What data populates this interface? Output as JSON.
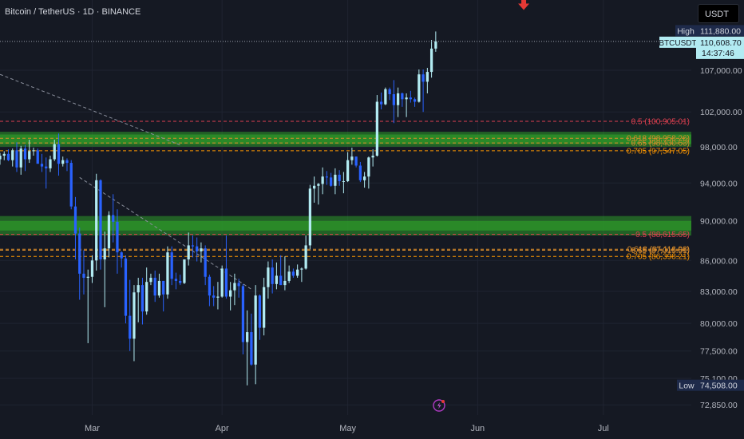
{
  "header": {
    "title": "Bitcoin / TetherUS · 1D · BINANCE"
  },
  "currency_button": {
    "label": "USDT"
  },
  "colors": {
    "background": "#151923",
    "up_candle": "#b2ebf2",
    "down_candle": "#2962ff",
    "zone_green": "#2e9b2a",
    "fib_05": "#e04050",
    "fib_0618": "#d98c2b",
    "fib_0705": "#ff9800",
    "high_marker": "#e53935",
    "price_tag": "#b2ebf2"
  },
  "chart_data": {
    "type": "candlestick",
    "symbol": "BTCUSDT",
    "timeframe": "1D",
    "y_scale": "log",
    "ylim": [
      72000,
      116000
    ],
    "xlim": [
      "2025-02-07",
      "2025-07-22"
    ],
    "x_ticks": [
      {
        "date": "2025-03-01",
        "label": "Mar"
      },
      {
        "date": "2025-04-01",
        "label": "Apr"
      },
      {
        "date": "2025-05-01",
        "label": "May"
      },
      {
        "date": "2025-06-01",
        "label": "Jun"
      },
      {
        "date": "2025-07-01",
        "label": "Jul"
      }
    ],
    "y_ticks": [
      107000,
      102000,
      98000,
      94000,
      90000,
      86000,
      83000,
      80000,
      77500,
      75100,
      72850
    ],
    "y_tick_labels": [
      "107,000.00",
      "102,000.00",
      "98,000.00",
      "94,000.00",
      "90,000.00",
      "86,000.00",
      "83,000.00",
      "80,000.00",
      "77,500.00",
      "75,100.00",
      "72,850.00"
    ],
    "price_labels": {
      "high": {
        "label": "High",
        "value": "111,880.00",
        "price": 111880
      },
      "current": {
        "symbol": "BTCUSDT",
        "value": "110,608.70",
        "price": 110608.7,
        "countdown": "14:37:46"
      },
      "low": {
        "label": "Low",
        "value": "74,508.00",
        "price": 74508
      }
    },
    "zones": [
      {
        "from": 98000,
        "to": 99700
      },
      {
        "from": 88500,
        "to": 90500
      }
    ],
    "fib_levels": [
      {
        "label": "0.5 (100,905.01)",
        "price": 100905.01,
        "color": "#e04050"
      },
      {
        "label": "0.618 (98,958.26)",
        "price": 98958.26,
        "color": "#d98c2b"
      },
      {
        "label": "0.65 (98,430.63)",
        "price": 98430.63,
        "color": "#d98c2b"
      },
      {
        "label": "0.705 (97,547.05)",
        "price": 97547.05,
        "color": "#ff9800"
      },
      {
        "label": "0.5 (88,615.65)",
        "price": 88615.65,
        "color": "#e04050"
      },
      {
        "label": "0.618 (87,116.98)",
        "price": 87116.98,
        "color": "#d98c2b"
      },
      {
        "label": "0.65 (87,015.51)",
        "price": 87015.51,
        "color": "#d98c2b"
      },
      {
        "label": "0.705 (86,398.21)",
        "price": 86398.21,
        "color": "#ff9800"
      }
    ],
    "trendlines": [
      {
        "from": {
          "date": "2025-02-07",
          "price": 106500
        },
        "to": {
          "date": "2025-03-22",
          "price": 98200
        }
      },
      {
        "from": {
          "date": "2025-02-26",
          "price": 94600
        },
        "to": {
          "date": "2025-04-08",
          "price": 83200
        }
      }
    ],
    "high_marker": {
      "date": "2025-06-12",
      "price": 115000
    },
    "candles": [
      {
        "date": "2025-02-07",
        "o": 96600,
        "h": 97300,
        "l": 96000,
        "c": 97000
      },
      {
        "date": "2025-02-08",
        "o": 97000,
        "h": 97500,
        "l": 96500,
        "c": 97200
      },
      {
        "date": "2025-02-09",
        "o": 97200,
        "h": 97700,
        "l": 96400,
        "c": 96500
      },
      {
        "date": "2025-02-10",
        "o": 96500,
        "h": 97800,
        "l": 95800,
        "c": 97600
      },
      {
        "date": "2025-02-11",
        "o": 97600,
        "h": 98500,
        "l": 95200,
        "c": 95700
      },
      {
        "date": "2025-02-12",
        "o": 95700,
        "h": 98100,
        "l": 94900,
        "c": 97800
      },
      {
        "date": "2025-02-13",
        "o": 97800,
        "h": 98200,
        "l": 95300,
        "c": 96600
      },
      {
        "date": "2025-02-14",
        "o": 96600,
        "h": 98800,
        "l": 96200,
        "c": 97500
      },
      {
        "date": "2025-02-15",
        "o": 97500,
        "h": 97900,
        "l": 97000,
        "c": 97600
      },
      {
        "date": "2025-02-16",
        "o": 97600,
        "h": 97800,
        "l": 96300,
        "c": 96100
      },
      {
        "date": "2025-02-17",
        "o": 96100,
        "h": 97200,
        "l": 95200,
        "c": 95800
      },
      {
        "date": "2025-02-18",
        "o": 95800,
        "h": 96800,
        "l": 93400,
        "c": 95600
      },
      {
        "date": "2025-02-19",
        "o": 95600,
        "h": 97000,
        "l": 95200,
        "c": 96600
      },
      {
        "date": "2025-02-20",
        "o": 96600,
        "h": 98800,
        "l": 96400,
        "c": 98300
      },
      {
        "date": "2025-02-21",
        "o": 98300,
        "h": 99500,
        "l": 94800,
        "c": 96100
      },
      {
        "date": "2025-02-22",
        "o": 96100,
        "h": 96900,
        "l": 95800,
        "c": 96500
      },
      {
        "date": "2025-02-23",
        "o": 96500,
        "h": 96700,
        "l": 95300,
        "c": 96200
      },
      {
        "date": "2025-02-24",
        "o": 96200,
        "h": 96500,
        "l": 91200,
        "c": 91500
      },
      {
        "date": "2025-02-25",
        "o": 91500,
        "h": 92500,
        "l": 86100,
        "c": 88700
      },
      {
        "date": "2025-02-26",
        "o": 88700,
        "h": 89300,
        "l": 82200,
        "c": 84700
      },
      {
        "date": "2025-02-27",
        "o": 84700,
        "h": 87000,
        "l": 82700,
        "c": 84300
      },
      {
        "date": "2025-02-28",
        "o": 84300,
        "h": 85100,
        "l": 78200,
        "c": 84400
      },
      {
        "date": "2025-03-01",
        "o": 84400,
        "h": 86500,
        "l": 83800,
        "c": 86000
      },
      {
        "date": "2025-03-02",
        "o": 86000,
        "h": 95000,
        "l": 85000,
        "c": 94300
      },
      {
        "date": "2025-03-03",
        "o": 94300,
        "h": 94400,
        "l": 85100,
        "c": 86100
      },
      {
        "date": "2025-03-04",
        "o": 86100,
        "h": 88900,
        "l": 81500,
        "c": 87200
      },
      {
        "date": "2025-03-05",
        "o": 87200,
        "h": 91000,
        "l": 86300,
        "c": 90600
      },
      {
        "date": "2025-03-06",
        "o": 90600,
        "h": 92800,
        "l": 87800,
        "c": 89900
      },
      {
        "date": "2025-03-07",
        "o": 89900,
        "h": 91200,
        "l": 84700,
        "c": 86800
      },
      {
        "date": "2025-03-08",
        "o": 86800,
        "h": 86900,
        "l": 85300,
        "c": 86200
      },
      {
        "date": "2025-03-09",
        "o": 86200,
        "h": 86500,
        "l": 80000,
        "c": 80700
      },
      {
        "date": "2025-03-10",
        "o": 80700,
        "h": 84100,
        "l": 77500,
        "c": 78600
      },
      {
        "date": "2025-03-11",
        "o": 78600,
        "h": 83600,
        "l": 76600,
        "c": 82900
      },
      {
        "date": "2025-03-12",
        "o": 82900,
        "h": 84300,
        "l": 80100,
        "c": 83600
      },
      {
        "date": "2025-03-13",
        "o": 83600,
        "h": 84300,
        "l": 79900,
        "c": 81100
      },
      {
        "date": "2025-03-14",
        "o": 81100,
        "h": 85300,
        "l": 80800,
        "c": 83900
      },
      {
        "date": "2025-03-15",
        "o": 83900,
        "h": 84700,
        "l": 83600,
        "c": 84300
      },
      {
        "date": "2025-03-16",
        "o": 84300,
        "h": 85000,
        "l": 82000,
        "c": 82600
      },
      {
        "date": "2025-03-17",
        "o": 82600,
        "h": 84700,
        "l": 82400,
        "c": 84000
      },
      {
        "date": "2025-03-18",
        "o": 84000,
        "h": 84000,
        "l": 81100,
        "c": 82700
      },
      {
        "date": "2025-03-19",
        "o": 82700,
        "h": 87400,
        "l": 82300,
        "c": 86800
      },
      {
        "date": "2025-03-20",
        "o": 86800,
        "h": 87400,
        "l": 83600,
        "c": 84200
      },
      {
        "date": "2025-03-21",
        "o": 84200,
        "h": 84800,
        "l": 83200,
        "c": 84000
      },
      {
        "date": "2025-03-22",
        "o": 84000,
        "h": 84600,
        "l": 83600,
        "c": 83800
      },
      {
        "date": "2025-03-23",
        "o": 83800,
        "h": 86100,
        "l": 83700,
        "c": 86100
      },
      {
        "date": "2025-03-24",
        "o": 86100,
        "h": 88800,
        "l": 85500,
        "c": 87500
      },
      {
        "date": "2025-03-25",
        "o": 87500,
        "h": 88500,
        "l": 86300,
        "c": 87400
      },
      {
        "date": "2025-03-26",
        "o": 87400,
        "h": 88300,
        "l": 85900,
        "c": 86900
      },
      {
        "date": "2025-03-27",
        "o": 86900,
        "h": 87800,
        "l": 85800,
        "c": 87200
      },
      {
        "date": "2025-03-28",
        "o": 87200,
        "h": 87500,
        "l": 83600,
        "c": 84400
      },
      {
        "date": "2025-03-29",
        "o": 84400,
        "h": 84600,
        "l": 81600,
        "c": 82600
      },
      {
        "date": "2025-03-30",
        "o": 82600,
        "h": 83500,
        "l": 81600,
        "c": 82400
      },
      {
        "date": "2025-03-31",
        "o": 82400,
        "h": 83900,
        "l": 81300,
        "c": 82500
      },
      {
        "date": "2025-04-01",
        "o": 82500,
        "h": 85500,
        "l": 82400,
        "c": 85200
      },
      {
        "date": "2025-04-02",
        "o": 85200,
        "h": 88500,
        "l": 82300,
        "c": 82500
      },
      {
        "date": "2025-04-03",
        "o": 82500,
        "h": 83900,
        "l": 81200,
        "c": 83100
      },
      {
        "date": "2025-04-04",
        "o": 83100,
        "h": 84700,
        "l": 81700,
        "c": 83800
      },
      {
        "date": "2025-04-05",
        "o": 83800,
        "h": 84200,
        "l": 82400,
        "c": 83500
      },
      {
        "date": "2025-04-06",
        "o": 83500,
        "h": 83700,
        "l": 77200,
        "c": 78300
      },
      {
        "date": "2025-04-07",
        "o": 78300,
        "h": 81200,
        "l": 74500,
        "c": 79200
      },
      {
        "date": "2025-04-08",
        "o": 79200,
        "h": 80900,
        "l": 76200,
        "c": 76300
      },
      {
        "date": "2025-04-09",
        "o": 76300,
        "h": 83600,
        "l": 74600,
        "c": 82600
      },
      {
        "date": "2025-04-10",
        "o": 82600,
        "h": 82700,
        "l": 78500,
        "c": 79600
      },
      {
        "date": "2025-04-11",
        "o": 79600,
        "h": 84300,
        "l": 78900,
        "c": 83400
      },
      {
        "date": "2025-04-12",
        "o": 83400,
        "h": 85900,
        "l": 82300,
        "c": 85300
      },
      {
        "date": "2025-04-13",
        "o": 85300,
        "h": 86100,
        "l": 82800,
        "c": 83700
      },
      {
        "date": "2025-04-14",
        "o": 83700,
        "h": 85800,
        "l": 83200,
        "c": 84500
      },
      {
        "date": "2025-04-15",
        "o": 84500,
        "h": 86500,
        "l": 83600,
        "c": 83600
      },
      {
        "date": "2025-04-16",
        "o": 83600,
        "h": 86400,
        "l": 83100,
        "c": 84000
      },
      {
        "date": "2025-04-17",
        "o": 84000,
        "h": 85500,
        "l": 83800,
        "c": 84900
      },
      {
        "date": "2025-04-18",
        "o": 84900,
        "h": 85200,
        "l": 84300,
        "c": 84500
      },
      {
        "date": "2025-04-19",
        "o": 84500,
        "h": 85600,
        "l": 84300,
        "c": 85100
      },
      {
        "date": "2025-04-20",
        "o": 85100,
        "h": 85300,
        "l": 83900,
        "c": 85200
      },
      {
        "date": "2025-04-21",
        "o": 85200,
        "h": 88500,
        "l": 85100,
        "c": 87500
      },
      {
        "date": "2025-04-22",
        "o": 87500,
        "h": 93800,
        "l": 87100,
        "c": 93400
      },
      {
        "date": "2025-04-23",
        "o": 93400,
        "h": 94700,
        "l": 91900,
        "c": 93700
      },
      {
        "date": "2025-04-24",
        "o": 93700,
        "h": 94000,
        "l": 91700,
        "c": 93900
      },
      {
        "date": "2025-04-25",
        "o": 93900,
        "h": 95700,
        "l": 92800,
        "c": 94700
      },
      {
        "date": "2025-04-26",
        "o": 94700,
        "h": 95300,
        "l": 93800,
        "c": 94600
      },
      {
        "date": "2025-04-27",
        "o": 94600,
        "h": 95100,
        "l": 93600,
        "c": 93700
      },
      {
        "date": "2025-04-28",
        "o": 93700,
        "h": 95600,
        "l": 92800,
        "c": 94900
      },
      {
        "date": "2025-04-29",
        "o": 94900,
        "h": 95400,
        "l": 93700,
        "c": 94200
      },
      {
        "date": "2025-04-30",
        "o": 94200,
        "h": 95200,
        "l": 92900,
        "c": 94200
      },
      {
        "date": "2025-05-01",
        "o": 94200,
        "h": 97400,
        "l": 94100,
        "c": 96500
      },
      {
        "date": "2025-05-02",
        "o": 96500,
        "h": 97900,
        "l": 96000,
        "c": 96900
      },
      {
        "date": "2025-05-03",
        "o": 96900,
        "h": 96900,
        "l": 95700,
        "c": 95900
      },
      {
        "date": "2025-05-04",
        "o": 95900,
        "h": 96300,
        "l": 94100,
        "c": 94300
      },
      {
        "date": "2025-05-05",
        "o": 94300,
        "h": 95200,
        "l": 93500,
        "c": 94700
      },
      {
        "date": "2025-05-06",
        "o": 94700,
        "h": 96900,
        "l": 93400,
        "c": 96800
      },
      {
        "date": "2025-05-07",
        "o": 96800,
        "h": 97700,
        "l": 95800,
        "c": 97000
      },
      {
        "date": "2025-05-08",
        "o": 97000,
        "h": 104000,
        "l": 96900,
        "c": 103200
      },
      {
        "date": "2025-05-09",
        "o": 103200,
        "h": 104300,
        "l": 102300,
        "c": 102900
      },
      {
        "date": "2025-05-10",
        "o": 102900,
        "h": 104900,
        "l": 102800,
        "c": 104700
      },
      {
        "date": "2025-05-11",
        "o": 104700,
        "h": 104900,
        "l": 103400,
        "c": 104100
      },
      {
        "date": "2025-05-12",
        "o": 104100,
        "h": 105800,
        "l": 100700,
        "c": 102800
      },
      {
        "date": "2025-05-13",
        "o": 102800,
        "h": 104900,
        "l": 101400,
        "c": 104200
      },
      {
        "date": "2025-05-14",
        "o": 104200,
        "h": 104300,
        "l": 102600,
        "c": 103500
      },
      {
        "date": "2025-05-15",
        "o": 103500,
        "h": 104200,
        "l": 101400,
        "c": 103700
      },
      {
        "date": "2025-05-16",
        "o": 103700,
        "h": 104500,
        "l": 103100,
        "c": 103500
      },
      {
        "date": "2025-05-17",
        "o": 103500,
        "h": 103700,
        "l": 102600,
        "c": 103200
      },
      {
        "date": "2025-05-18",
        "o": 103200,
        "h": 107100,
        "l": 103100,
        "c": 106500
      },
      {
        "date": "2025-05-19",
        "o": 106500,
        "h": 107100,
        "l": 102000,
        "c": 105600
      },
      {
        "date": "2025-05-20",
        "o": 105600,
        "h": 107300,
        "l": 104200,
        "c": 106800
      },
      {
        "date": "2025-05-21",
        "o": 106800,
        "h": 110800,
        "l": 106100,
        "c": 109700
      },
      {
        "date": "2025-05-22",
        "o": 109700,
        "h": 111880,
        "l": 109300,
        "c": 110608.7
      }
    ]
  }
}
